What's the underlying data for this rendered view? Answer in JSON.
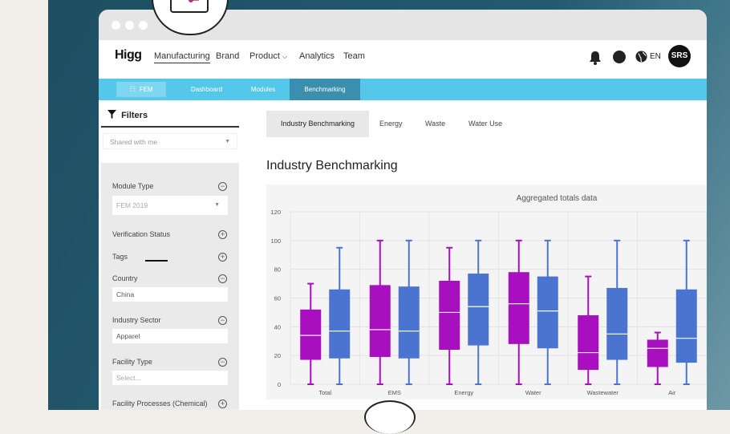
{
  "app": {
    "brand": "Higg",
    "nav": [
      "Manufacturing",
      "Brand",
      "Product",
      "Analytics",
      "Team"
    ],
    "nav_active": "Manufacturing",
    "lang": "EN",
    "avatar": "SRS"
  },
  "subnav": {
    "fem": "FEM",
    "items": [
      "Dashboard",
      "Modules",
      "Benchmarking"
    ],
    "active": "Benchmarking",
    "color": "#55c7ea"
  },
  "sidebar": {
    "title": "Filters",
    "shared": "Shared with me",
    "module_type": {
      "label": "Module Type",
      "value": "FEM 2019"
    },
    "verification": {
      "label": "Verification Status"
    },
    "tags": {
      "label": "Tags"
    },
    "country": {
      "label": "Country",
      "value": "China"
    },
    "industry": {
      "label": "Industry Sector",
      "value": "Apparel"
    },
    "facility_type": {
      "label": "Facility Type",
      "placeholder": "Select..."
    },
    "facility_proc": {
      "label": "Facility Processes (Chemical)"
    }
  },
  "main": {
    "tabs": [
      "Industry Benchmarking",
      "Energy",
      "Waste",
      "Water Use"
    ],
    "active_tab": "Industry Benchmarking",
    "page_title": "Industry Benchmarking"
  },
  "chart_data": {
    "type": "boxplot",
    "title": "Aggregated totals data",
    "categories": [
      "Total",
      "EMS",
      "Energy",
      "Water",
      "Wastewater",
      "Air"
    ],
    "ylim": [
      0,
      120
    ],
    "yticks": [
      0,
      20,
      40,
      60,
      80,
      100,
      120
    ],
    "grid": true,
    "series": [
      {
        "color": "#a80fbf",
        "boxes": [
          {
            "min": 0,
            "q1": 17,
            "median": 34,
            "q3": 52,
            "max": 70
          },
          {
            "min": 0,
            "q1": 19,
            "median": 38,
            "q3": 69,
            "max": 100
          },
          {
            "min": 0,
            "q1": 24,
            "median": 50,
            "q3": 72,
            "max": 95
          },
          {
            "min": 0,
            "q1": 28,
            "median": 56,
            "q3": 78,
            "max": 100
          },
          {
            "min": 0,
            "q1": 10,
            "median": 22,
            "q3": 48,
            "max": 75
          },
          {
            "min": 0,
            "q1": 12,
            "median": 25,
            "q3": 31,
            "max": 36
          }
        ]
      },
      {
        "color": "#4a74d0",
        "boxes": [
          {
            "min": 0,
            "q1": 18,
            "median": 37,
            "q3": 66,
            "max": 95
          },
          {
            "min": 0,
            "q1": 18,
            "median": 37,
            "q3": 68,
            "max": 100
          },
          {
            "min": 0,
            "q1": 27,
            "median": 54,
            "q3": 77,
            "max": 100
          },
          {
            "min": 0,
            "q1": 25,
            "median": 51,
            "q3": 75,
            "max": 100
          },
          {
            "min": 0,
            "q1": 17,
            "median": 35,
            "q3": 67,
            "max": 100
          },
          {
            "min": 0,
            "q1": 15,
            "median": 32,
            "q3": 66,
            "max": 100
          }
        ]
      }
    ]
  }
}
